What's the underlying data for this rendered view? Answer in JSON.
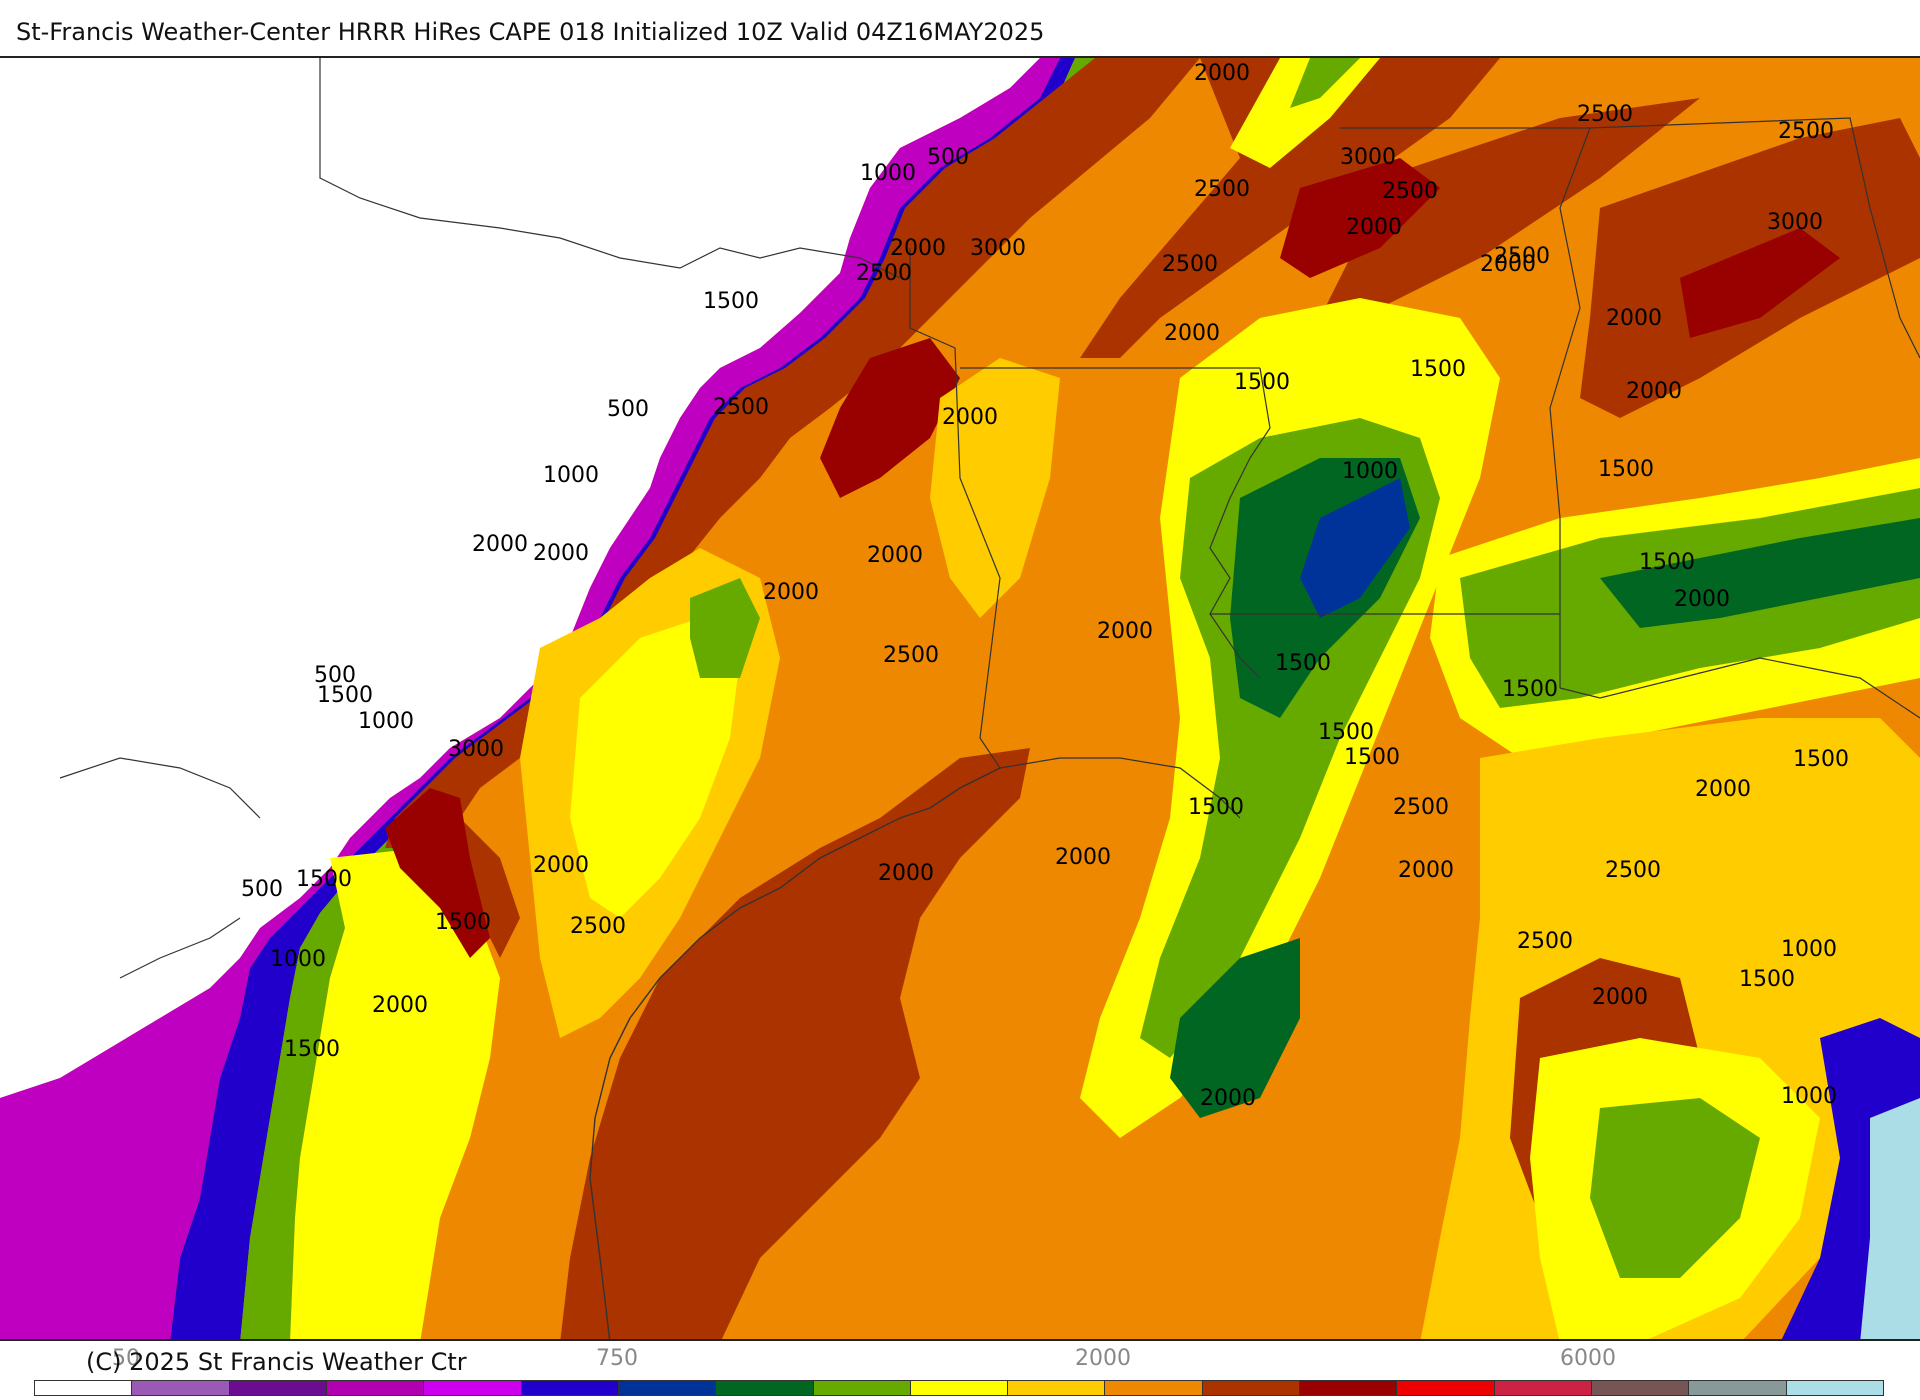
{
  "title": "St-Francis Weather-Center HRRR HiRes CAPE  018 Initialized  10Z Valid 04Z16MAY2025",
  "copyright": "(C) 2025 St Francis Weather Ctr",
  "colors": {
    "c0": "#ffffff",
    "c50": "#9b59b6",
    "c100": "#6a0d91",
    "c250": "#c000c0",
    "c500": "#0000aa",
    "c750": "#003399",
    "c1000": "#006622",
    "c1250": "#66aa00",
    "c1500": "#ffff00",
    "c1750": "#ffcc00",
    "c2000": "#ee8800",
    "c2500": "#aa3300",
    "c3000": "#990000",
    "c3500": "#ee0000",
    "c4000": "#cc2244",
    "c4500": "#775555",
    "c5000": "#889999",
    "c6000": "#aadde5"
  },
  "colorbar": {
    "swatches": [
      "#ffffff",
      "#9b59b6",
      "#6a0d91",
      "#b000b0",
      "#cc00ee",
      "#2200cc",
      "#003399",
      "#006622",
      "#66aa00",
      "#ffff00",
      "#ffcc00",
      "#ee8800",
      "#aa3300",
      "#990000",
      "#ee0000",
      "#cc2244",
      "#775555",
      "#889999",
      "#aadde5"
    ],
    "tick_labels": [
      "50",
      "750",
      "2000",
      "6000"
    ]
  },
  "contour_labels": [
    {
      "text": "2000"
    },
    {
      "text": "2500"
    },
    {
      "text": "2500"
    },
    {
      "text": "3000"
    },
    {
      "text": "2500"
    },
    {
      "text": "2000"
    },
    {
      "text": "3000"
    },
    {
      "text": "500"
    },
    {
      "text": "1000"
    },
    {
      "text": "2000"
    },
    {
      "text": "3000"
    },
    {
      "text": "2500"
    },
    {
      "text": "2500"
    },
    {
      "text": "2000"
    },
    {
      "text": "1500"
    },
    {
      "text": "2500"
    },
    {
      "text": "2500"
    },
    {
      "text": "2000"
    },
    {
      "text": "2000"
    },
    {
      "text": "1500"
    },
    {
      "text": "1500"
    },
    {
      "text": "500"
    },
    {
      "text": "2500"
    },
    {
      "text": "2000"
    },
    {
      "text": "2000"
    },
    {
      "text": "1000"
    },
    {
      "text": "1500"
    },
    {
      "text": "1000"
    },
    {
      "text": "2000"
    },
    {
      "text": "2000"
    },
    {
      "text": "2000"
    },
    {
      "text": "1500"
    },
    {
      "text": "2000"
    },
    {
      "text": "2000"
    },
    {
      "text": "2500"
    },
    {
      "text": "2000"
    },
    {
      "text": "1500"
    },
    {
      "text": "500"
    },
    {
      "text": "1500"
    },
    {
      "text": "1000"
    },
    {
      "text": "1500"
    },
    {
      "text": "3000"
    },
    {
      "text": "1500"
    },
    {
      "text": "1500"
    },
    {
      "text": "1500"
    },
    {
      "text": "2500"
    },
    {
      "text": "1500"
    },
    {
      "text": "2000"
    },
    {
      "text": "2000"
    },
    {
      "text": "2000"
    },
    {
      "text": "2000"
    },
    {
      "text": "2500"
    },
    {
      "text": "2000"
    },
    {
      "text": "500"
    },
    {
      "text": "1500"
    },
    {
      "text": "2500"
    },
    {
      "text": "1500"
    },
    {
      "text": "1000"
    },
    {
      "text": "2500"
    },
    {
      "text": "1000"
    },
    {
      "text": "2000"
    },
    {
      "text": "2000"
    },
    {
      "text": "1500"
    },
    {
      "text": "1500"
    },
    {
      "text": "1000"
    },
    {
      "text": "2000"
    }
  ]
}
